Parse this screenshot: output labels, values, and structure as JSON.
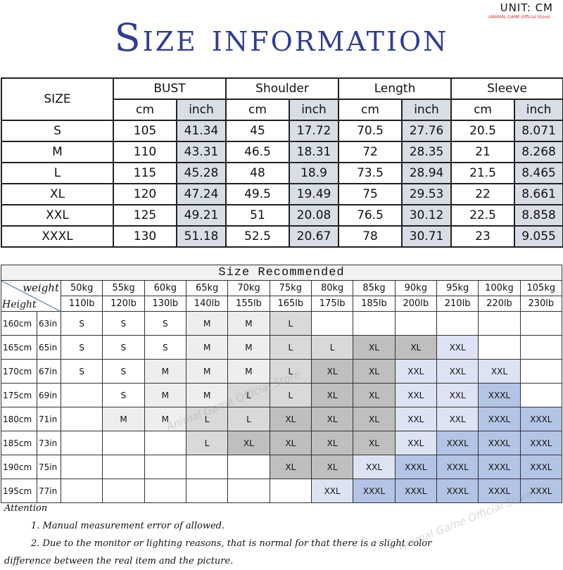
{
  "title": "Size information",
  "unit": "UNIT: CM",
  "unit_store": "(ANIMAL GAME Official Store)",
  "watermark": "Animal Game Official Store",
  "size_table": {
    "size_label": "SIZE",
    "groups": [
      "BUST",
      "Shoulder",
      "Length",
      "Sleeve"
    ],
    "subheaders": [
      "cm",
      "inch"
    ],
    "rows": [
      [
        "S",
        "105",
        "41.34",
        "45",
        "17.72",
        "70.5",
        "27.76",
        "20.5",
        "8.071"
      ],
      [
        "M",
        "110",
        "43.31",
        "46.5",
        "18.31",
        "72",
        "28.35",
        "21",
        "8.268"
      ],
      [
        "L",
        "115",
        "45.28",
        "48",
        "18.9",
        "73.5",
        "28.94",
        "21.5",
        "8.465"
      ],
      [
        "XL",
        "120",
        "47.24",
        "49.5",
        "19.49",
        "75",
        "29.53",
        "22",
        "8.661"
      ],
      [
        "XXL",
        "125",
        "49.21",
        "51",
        "20.08",
        "76.5",
        "30.12",
        "22.5",
        "8.858"
      ],
      [
        "XXXL",
        "130",
        "51.18",
        "52.5",
        "20.67",
        "78",
        "30.71",
        "23",
        "9.055"
      ]
    ]
  },
  "recommend": {
    "title": "Size Recommended",
    "weight_label": "weight",
    "height_label": "Height",
    "kg": [
      "50kg",
      "55kg",
      "60kg",
      "65kg",
      "70kg",
      "75kg",
      "80kg",
      "85kg",
      "90kg",
      "95kg",
      "100kg",
      "105kg"
    ],
    "lb": [
      "110lb",
      "120lb",
      "130lb",
      "140lb",
      "155lb",
      "165lb",
      "175lb",
      "185lb",
      "200lb",
      "210lb",
      "220lb",
      "230lb"
    ],
    "rows": [
      {
        "cm": "160cm",
        "in": "63in",
        "sizes": [
          "S",
          "S",
          "S",
          "M",
          "M",
          "L",
          "",
          "",
          "",
          "",
          "",
          ""
        ]
      },
      {
        "cm": "165cm",
        "in": "65in",
        "sizes": [
          "S",
          "S",
          "S",
          "M",
          "M",
          "L",
          "L",
          "XL",
          "XL",
          "XXL",
          "",
          ""
        ]
      },
      {
        "cm": "170cm",
        "in": "67in",
        "sizes": [
          "S",
          "S",
          "M",
          "M",
          "M",
          "L",
          "XL",
          "XL",
          "XXL",
          "XXL",
          "XXL",
          ""
        ]
      },
      {
        "cm": "175cm",
        "in": "69in",
        "sizes": [
          "",
          "S",
          "M",
          "M",
          "L",
          "L",
          "XL",
          "XL",
          "XXL",
          "XXL",
          "XXXL",
          ""
        ]
      },
      {
        "cm": "180cm",
        "in": "71in",
        "sizes": [
          "",
          "M",
          "M",
          "L",
          "L",
          "XL",
          "XL",
          "XL",
          "XXL",
          "XXL",
          "XXXL",
          "XXXL"
        ]
      },
      {
        "cm": "185cm",
        "in": "73in",
        "sizes": [
          "",
          "",
          "",
          "L",
          "XL",
          "XL",
          "XL",
          "XL",
          "XXL",
          "XXXL",
          "XXXL",
          "XXXL"
        ]
      },
      {
        "cm": "190cm",
        "in": "75in",
        "sizes": [
          "",
          "",
          "",
          "",
          "",
          "XL",
          "XL",
          "XXL",
          "XXXL",
          "XXXL",
          "XXXL",
          "XXXL"
        ]
      },
      {
        "cm": "195cm",
        "in": "77in",
        "sizes": [
          "",
          "",
          "",
          "",
          "",
          "",
          "XXL",
          "XXXL",
          "XXXL",
          "XXXL",
          "XXXL",
          "XXXL"
        ]
      }
    ],
    "colors": {
      "S": "#ffffff",
      "M": "#eeeeee",
      "L": "#d9d9d9",
      "XL": "#bfbfbf",
      "XXL": "#dde3f2",
      "XXXL": "#b4c4e6"
    }
  },
  "notes": {
    "heading": "Attention",
    "items": [
      "1. Manual measurement error of allowed.",
      "2.  Due to the monitor or lighting reasons, that is normal for that there is a slight color",
      "difference between the real item and the picture."
    ]
  },
  "colors": {
    "title": "#2f3d92"
  }
}
